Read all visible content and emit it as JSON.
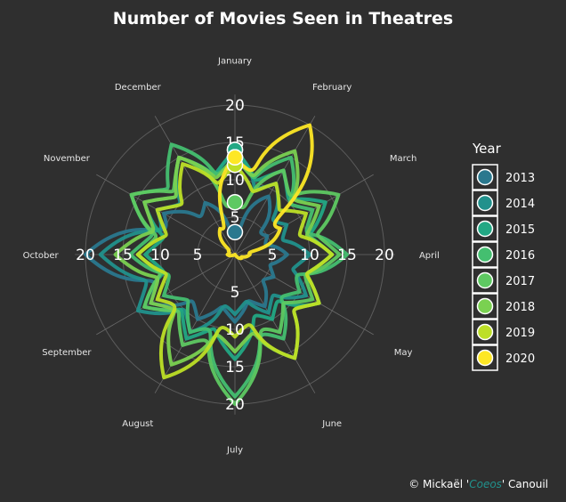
{
  "chart_data": {
    "type": "polar-line",
    "title": "Number of Movies Seen in Theatres",
    "angular_axis": {
      "categories": [
        "January",
        "February",
        "March",
        "April",
        "May",
        "June",
        "July",
        "August",
        "September",
        "October",
        "November",
        "December"
      ],
      "direction": "clockwise",
      "start": "top"
    },
    "radial_axis": {
      "range": [
        0,
        20
      ],
      "ticks": [
        5,
        10,
        15,
        20
      ],
      "tick_labels": [
        "5",
        "10",
        "15",
        "20"
      ],
      "grid": true
    },
    "legend": {
      "title": "Year",
      "position": "right",
      "entries": [
        "2013",
        "2014",
        "2015",
        "2016",
        "2017",
        "2018",
        "2019",
        "2020"
      ]
    },
    "series": [
      {
        "name": "2013",
        "color": "#2a788e",
        "values": [
          3,
          9,
          5,
          7,
          6,
          8,
          9,
          10,
          13,
          20,
          11,
          8
        ]
      },
      {
        "name": "2014",
        "color": "#21918c",
        "values": [
          14,
          11,
          8,
          10,
          11,
          9,
          8,
          12,
          15,
          18,
          12,
          15
        ]
      },
      {
        "name": "2015",
        "color": "#22a884",
        "values": [
          14,
          13,
          14,
          13,
          13,
          10,
          14,
          13,
          14,
          12,
          14,
          15
        ]
      },
      {
        "name": "2016",
        "color": "#44bf70",
        "values": [
          13,
          15,
          12,
          15,
          10,
          13,
          19,
          12,
          11,
          14,
          16,
          17
        ]
      },
      {
        "name": "2017",
        "color": "#5ec962",
        "values": [
          7,
          13,
          16,
          14,
          12,
          12,
          20,
          14,
          14,
          13,
          16,
          15
        ]
      },
      {
        "name": "2018",
        "color": "#7ad151",
        "values": [
          13,
          16,
          13,
          13,
          13,
          16,
          13,
          17,
          13,
          16,
          14,
          15
        ]
      },
      {
        "name": "2019",
        "color": "#bddf26",
        "values": [
          12,
          11,
          11,
          13,
          13,
          16,
          11,
          19,
          12,
          13,
          12,
          14
        ]
      },
      {
        "name": "2020",
        "color": "#fde725",
        "values": [
          13,
          20,
          7,
          2,
          1,
          0,
          0,
          0,
          0,
          1,
          1,
          4
        ]
      }
    ]
  },
  "caption": {
    "prefix": "© Mickaël '",
    "highlight": "Coeos",
    "suffix": "' Canouil",
    "highlight_color": "#21918c"
  }
}
